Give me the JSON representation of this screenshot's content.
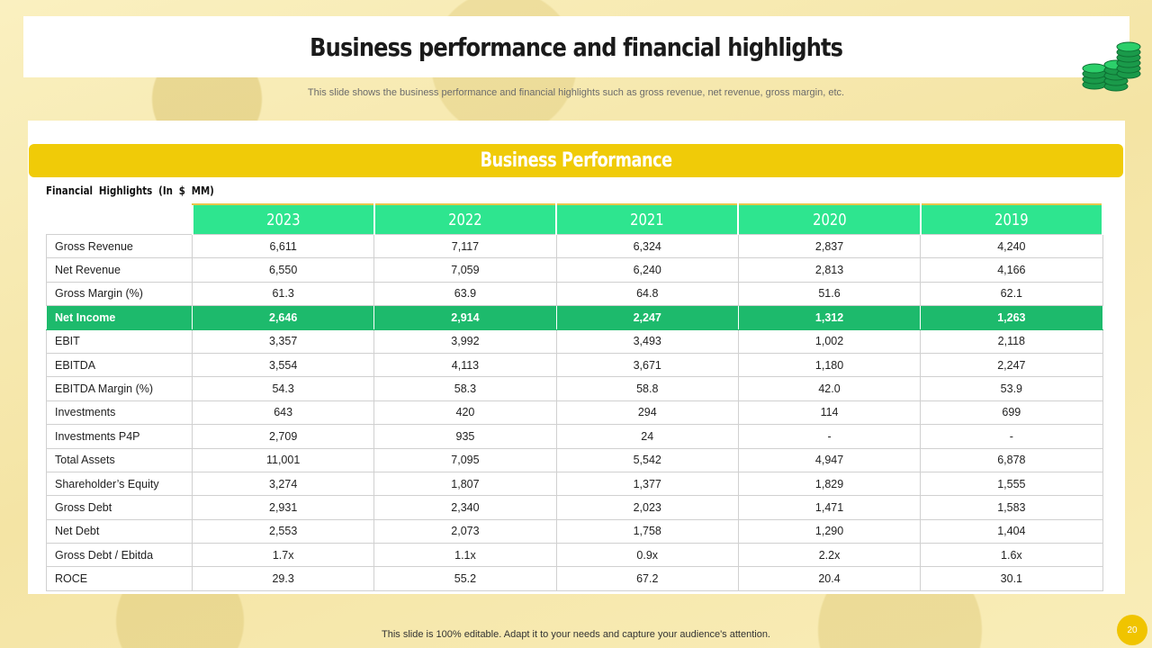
{
  "header": {
    "title": "Business performance and financial highlights",
    "subtitle": "This slide shows the business performance and financial highlights such as gross revenue, net revenue,  gross margin, etc."
  },
  "section": {
    "title": "Business Performance",
    "table_label": "Financial Highlights  (In $ MM)"
  },
  "table": {
    "years": [
      "2023",
      "2022",
      "2021",
      "2020",
      "2019"
    ],
    "rows": [
      {
        "label": "Gross Revenue",
        "values": [
          "6,611",
          "7,117",
          "6,324",
          "2,837",
          "4,240"
        ]
      },
      {
        "label": "Net Revenue",
        "values": [
          "6,550",
          "7,059",
          "6,240",
          "2,813",
          "4,166"
        ]
      },
      {
        "label": "Gross Margin (%)",
        "values": [
          "61.3",
          "63.9",
          "64.8",
          "51.6",
          "62.1"
        ]
      },
      {
        "label": "Net Income",
        "values": [
          "2,646",
          "2,914",
          "2,247",
          "1,312",
          "1,263"
        ]
      },
      {
        "label": "EBIT",
        "values": [
          "3,357",
          "3,992",
          "3,493",
          "1,002",
          "2,118"
        ]
      },
      {
        "label": "EBITDA",
        "values": [
          "3,554",
          "4,113",
          "3,671",
          "1,180",
          "2,247"
        ]
      },
      {
        "label": "EBITDA Margin (%)",
        "values": [
          "54.3",
          "58.3",
          "58.8",
          "42.0",
          "53.9"
        ]
      },
      {
        "label": "Investments",
        "values": [
          "643",
          "420",
          "294",
          "114",
          "699"
        ]
      },
      {
        "label": "Investments P4P",
        "values": [
          "2,709",
          "935",
          "24",
          "-",
          "-"
        ]
      },
      {
        "label": "Total Assets",
        "values": [
          "11,001",
          "7,095",
          "5,542",
          "4,947",
          "6,878"
        ]
      },
      {
        "label": "Shareholder’s Equity",
        "values": [
          "3,274",
          "1,807",
          "1,377",
          "1,829",
          "1,555"
        ]
      },
      {
        "label": "Gross Debt",
        "values": [
          "2,931",
          "2,340",
          "2,023",
          "1,471",
          "1,583"
        ]
      },
      {
        "label": "Net Debt",
        "values": [
          "2,553",
          "2,073",
          "1,758",
          "1,290",
          "1,404"
        ]
      },
      {
        "label": "Gross Debt / Ebitda",
        "values": [
          "1.7x",
          "1.1x",
          "0.9x",
          "2.2x",
          "1.6x"
        ]
      },
      {
        "label": "ROCE",
        "values": [
          "29.3",
          "55.2",
          "67.2",
          "20.4",
          "30.1"
        ]
      }
    ]
  },
  "footer": {
    "text": "This slide is 100% editable. Adapt it to your needs and capture your audience's attention.",
    "page_number": "20"
  },
  "icons": {
    "decoration": "money-stack-icon"
  },
  "colors": {
    "background": "#f8ecb4",
    "band": "#f0cb08",
    "header_green": "#2ee58f",
    "highlight_green": "#1dba6c",
    "page_badge": "#f0c400"
  }
}
